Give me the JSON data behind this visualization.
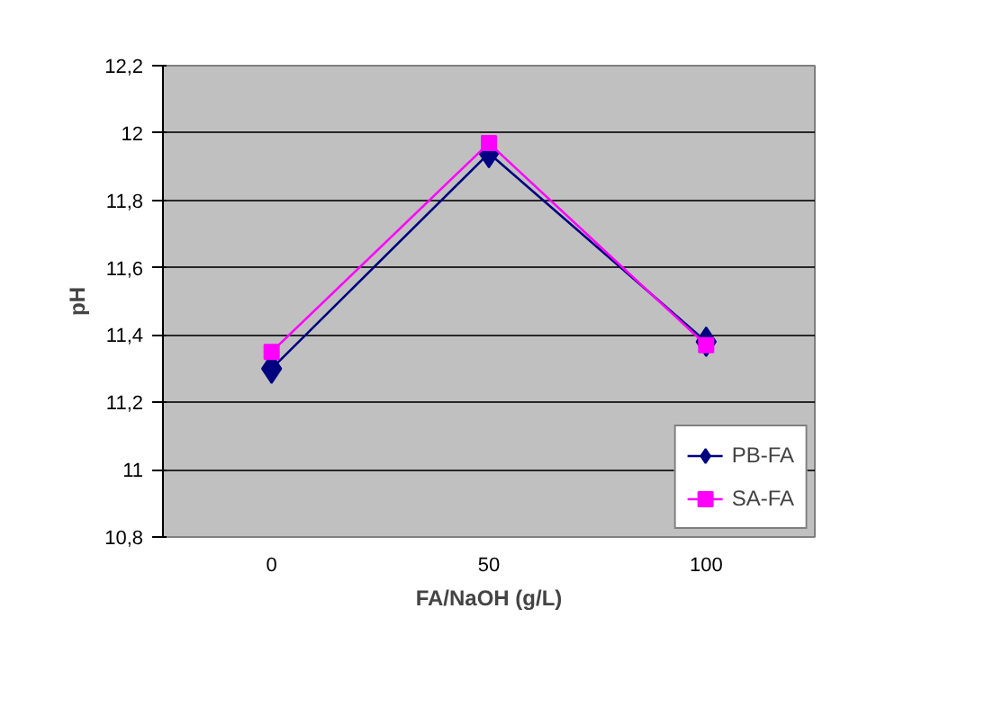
{
  "chart_data": {
    "type": "line",
    "xlabel": "FA/NaOH (g/L)",
    "ylabel": "pH",
    "categories": [
      "0",
      "50",
      "100"
    ],
    "series": [
      {
        "name": "PB-FA",
        "color": "#000080",
        "marker": "diamond",
        "values": [
          11.3,
          11.94,
          11.38
        ]
      },
      {
        "name": "SA-FA",
        "color": "#ff00ff",
        "marker": "square",
        "values": [
          11.35,
          11.97,
          11.37
        ]
      }
    ],
    "ylim": [
      10.8,
      12.2
    ],
    "yticks": [
      {
        "value": 10.8,
        "label": "10,8"
      },
      11,
      {
        "value": 11.2,
        "label": "11,2"
      },
      {
        "value": 11.4,
        "label": "11,4"
      },
      {
        "value": 11.6,
        "label": "11,6"
      },
      {
        "value": 11.8,
        "label": "11,8"
      },
      12,
      {
        "value": 12.2,
        "label": "12,2"
      }
    ],
    "grid": "y",
    "legend": "bottom right"
  }
}
